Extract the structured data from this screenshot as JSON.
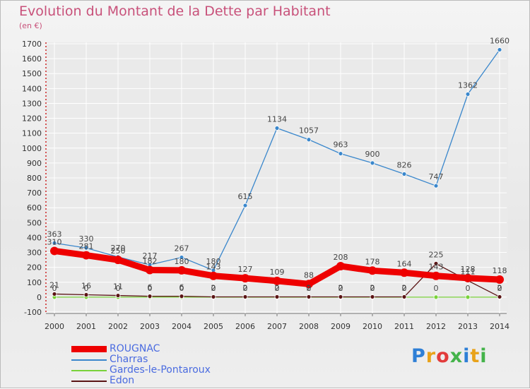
{
  "title": "Evolution du Montant de la Dette par Habitant",
  "unit": "(en €)",
  "logo": {
    "text": "Proxiti",
    "colors": [
      "#2e7fd6",
      "#e8a21a",
      "#e23b3b",
      "#44b34a",
      "#2e7fd6",
      "#e8a21a",
      "#44b34a"
    ]
  },
  "chart_data": {
    "type": "line",
    "title": "Evolution du Montant de la Dette par Habitant",
    "ylabel": "(en €)",
    "xlabel": "",
    "x": [
      2000,
      2001,
      2002,
      2003,
      2004,
      2005,
      2006,
      2007,
      2008,
      2009,
      2010,
      2011,
      2012,
      2013,
      2014
    ],
    "ylim": [
      -100,
      1700
    ],
    "yticks": [
      -100,
      0,
      100,
      200,
      300,
      400,
      500,
      600,
      700,
      800,
      900,
      1000,
      1100,
      1200,
      1300,
      1400,
      1500,
      1600,
      1700
    ],
    "grid": true,
    "legend_position": "bottom-left",
    "series": [
      {
        "name": "ROUGNAC",
        "color": "#ee0000",
        "thick": true,
        "values": [
          310,
          281,
          250,
          182,
          180,
          143,
          127,
          109,
          88,
          208,
          178,
          164,
          143,
          128,
          118
        ],
        "labels": [
          "310",
          "281",
          "250",
          "182",
          "180",
          "143",
          "127",
          "109",
          "88",
          "208",
          "178",
          "164",
          "143",
          "128",
          "118"
        ]
      },
      {
        "name": "Charras",
        "color": "#3a87cc",
        "thick": false,
        "values": [
          363,
          330,
          270,
          217,
          267,
          180,
          615,
          1134,
          1057,
          963,
          900,
          826,
          747,
          1362,
          1660
        ],
        "labels": [
          "363",
          "330",
          "270",
          "217",
          "267",
          "180",
          "615",
          "1134",
          "1057",
          "963",
          "900",
          "826",
          "747",
          "1362",
          "1660"
        ]
      },
      {
        "name": "Gardes-le-Pontaroux",
        "color": "#79d23a",
        "thick": false,
        "values": [
          0,
          0,
          0,
          0,
          0,
          0,
          0,
          0,
          0,
          0,
          0,
          0,
          0,
          0,
          0
        ],
        "labels": [
          "0",
          "0",
          "0",
          "0",
          "0",
          "0",
          "0",
          "0",
          "0",
          "0",
          "0",
          "0",
          "0",
          "0",
          "0"
        ]
      },
      {
        "name": "Edon",
        "color": "#5a1414",
        "thick": false,
        "values": [
          21,
          16,
          11,
          6,
          6,
          2,
          2,
          2,
          2,
          2,
          2,
          2,
          225,
          111,
          2
        ],
        "labels": [
          "21",
          "16",
          "11",
          "6",
          "6",
          "2",
          "2",
          "2",
          "2",
          "2",
          "2",
          "2",
          "225",
          "111",
          "2"
        ]
      }
    ]
  }
}
